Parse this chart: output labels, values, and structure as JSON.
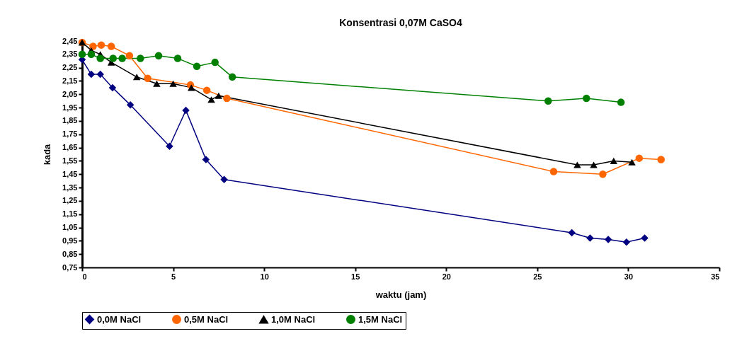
{
  "chart_data": {
    "type": "line",
    "title": "Konsentrasi 0,07M CaSO4",
    "xlabel": "waktu (jam)",
    "ylabel": "kada",
    "xlim": [
      0,
      35
    ],
    "xticks": [
      0,
      5,
      10,
      15,
      20,
      25,
      30,
      35
    ],
    "ylim": [
      0.75,
      2.45
    ],
    "yticks": [
      {
        "value": 0.75,
        "label": "0,75"
      },
      {
        "value": 0.85,
        "label": "0,85"
      },
      {
        "value": 0.95,
        "label": "0,95"
      },
      {
        "value": 1.05,
        "label": "1,05"
      },
      {
        "value": 1.15,
        "label": "1,15"
      },
      {
        "value": 1.25,
        "label": "1,25"
      },
      {
        "value": 1.35,
        "label": "1,35"
      },
      {
        "value": 1.45,
        "label": "1,45"
      },
      {
        "value": 1.55,
        "label": "1,55"
      },
      {
        "value": 1.65,
        "label": "1,65"
      },
      {
        "value": 1.75,
        "label": "1,75"
      },
      {
        "value": 1.85,
        "label": "1,85"
      },
      {
        "value": 1.95,
        "label": "1,95"
      },
      {
        "value": 2.05,
        "label": "2,05"
      },
      {
        "value": 2.15,
        "label": "2,15"
      },
      {
        "value": 2.25,
        "label": "2,25"
      },
      {
        "value": 2.35,
        "label": "2,35"
      },
      {
        "value": 2.45,
        "label": "2,45"
      }
    ],
    "grid": false,
    "legend": "bottom",
    "series": [
      {
        "name": "0,0M NaCl",
        "color": "#000080",
        "marker": "diamond",
        "x": [
          0,
          0.5,
          1.0,
          1.67,
          2.65,
          4.8,
          5.7,
          6.8,
          7.8,
          26.9,
          27.9,
          28.9,
          29.9,
          30.9
        ],
        "values": [
          2.31,
          2.2,
          2.2,
          2.1,
          1.97,
          1.66,
          1.93,
          1.56,
          1.41,
          1.01,
          0.97,
          0.96,
          0.94,
          0.97
        ]
      },
      {
        "name": "0,5M NaCl",
        "color": "#ff6600",
        "marker": "circle",
        "x": [
          0,
          0.6,
          1.05,
          1.6,
          2.6,
          3.6,
          5.95,
          6.85,
          7.95,
          25.9,
          28.6,
          30.6,
          31.8
        ],
        "values": [
          2.44,
          2.41,
          2.42,
          2.41,
          2.34,
          2.17,
          2.12,
          2.08,
          2.02,
          1.47,
          1.45,
          1.57,
          1.56
        ]
      },
      {
        "name": "1,0M NaCl",
        "color": "#000000",
        "marker": "triangle",
        "x": [
          0,
          0.5,
          1.0,
          1.6,
          3.0,
          4.1,
          5.0,
          6.0,
          7.1,
          7.5,
          27.2,
          28.1,
          29.2,
          30.2
        ],
        "values": [
          2.44,
          2.38,
          2.35,
          2.29,
          2.18,
          2.13,
          2.13,
          2.1,
          2.01,
          2.04,
          1.52,
          1.52,
          1.55,
          1.54
        ]
      },
      {
        "name": "1,5M NaCl",
        "color": "#008000",
        "marker": "circle",
        "x": [
          0,
          0.5,
          1.0,
          1.7,
          2.2,
          3.2,
          4.2,
          5.25,
          6.3,
          7.3,
          8.25,
          25.6,
          27.7,
          29.6
        ],
        "values": [
          2.35,
          2.35,
          2.32,
          2.32,
          2.32,
          2.32,
          2.34,
          2.32,
          2.26,
          2.29,
          2.18,
          2.0,
          2.02,
          1.99
        ]
      }
    ]
  }
}
